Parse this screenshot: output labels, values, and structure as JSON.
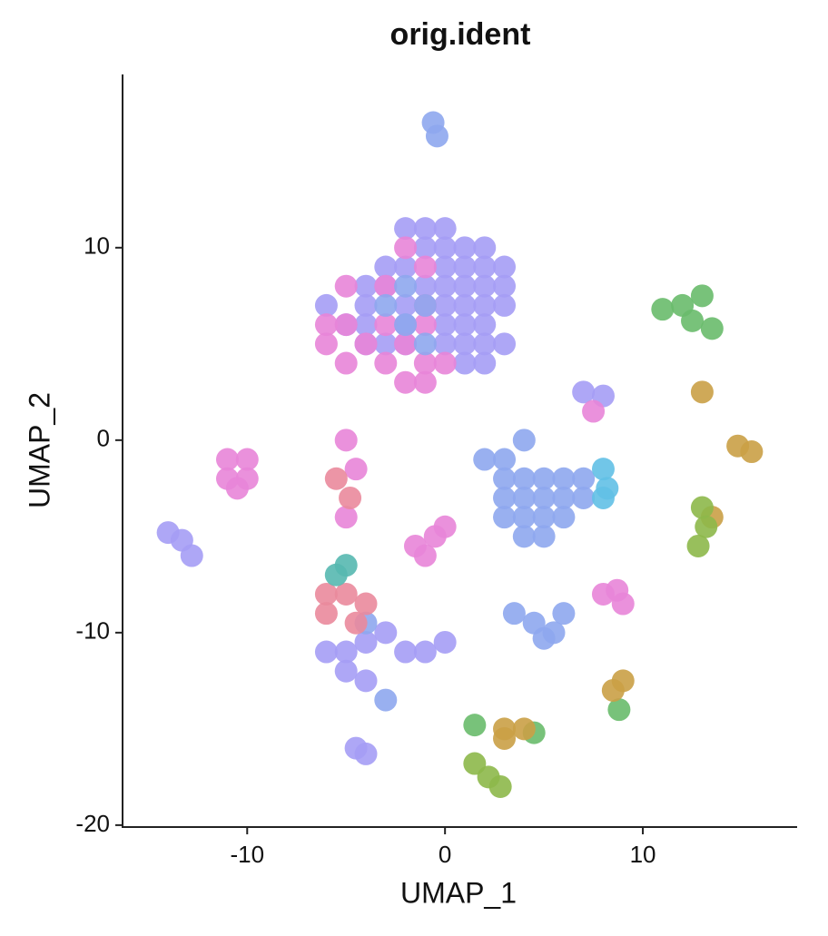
{
  "chart_data": {
    "type": "scatter",
    "title": "orig.ident",
    "x_label": "UMAP_1",
    "y_label": "UMAP_2",
    "xlim": [
      -16.3,
      17.8
    ],
    "ylim": [
      -20.1,
      19
    ],
    "xticks": [
      -10,
      0,
      10
    ],
    "yticks": [
      -20,
      -10,
      0,
      10
    ],
    "grid": false,
    "series": [
      {
        "color": "#a59df5",
        "x": [
          -2,
          -1,
          0,
          -1,
          0,
          1,
          2,
          -3,
          -2,
          0,
          1,
          2,
          3,
          -4,
          -3,
          -1,
          0,
          1,
          2,
          3,
          -6,
          -4,
          -2,
          0,
          1,
          2,
          3,
          -5,
          -4,
          -2,
          0,
          1,
          2,
          -4,
          -3,
          -2,
          0,
          1,
          2,
          3,
          1,
          2,
          -14,
          -13.3,
          -12.8,
          -6,
          -5,
          -4,
          -3,
          -2,
          -1,
          0,
          -5,
          -4,
          -4.5,
          -4,
          7,
          8
        ],
        "values": [
          11,
          11,
          11,
          10,
          10,
          10,
          10,
          9,
          9,
          9,
          9,
          9,
          9,
          8,
          8,
          8,
          8,
          8,
          8,
          8,
          7,
          7,
          7,
          7,
          7,
          7,
          7,
          6,
          6,
          6,
          6,
          6,
          6,
          5,
          5,
          5,
          5,
          5,
          5,
          5,
          4,
          4,
          -4.8,
          -5.2,
          -6,
          -11,
          -11,
          -10.5,
          -10,
          -11,
          -11,
          -10.5,
          -12,
          -12.5,
          -16,
          -16.3,
          2.5,
          2.3
        ]
      },
      {
        "color": "#e885d8",
        "x": [
          -2,
          -1,
          -5,
          -3,
          -1,
          -6,
          -5,
          -3,
          -1,
          -6,
          -4,
          -2,
          -5,
          -3,
          -1,
          0,
          -2,
          -1,
          -11,
          -10,
          -11,
          -10,
          -10.5,
          -5,
          -4.5,
          -5,
          -1.5,
          -0.5,
          0,
          -1,
          7.5,
          8,
          9,
          8.7
        ],
        "values": [
          10,
          9,
          8,
          8,
          7,
          6,
          6,
          6,
          6,
          5,
          5,
          5,
          4,
          4,
          4,
          4,
          3,
          3,
          -1,
          -1,
          -2,
          -2,
          -2.5,
          0,
          -1.5,
          -4,
          -5.5,
          -5,
          -4.5,
          -6,
          1.5,
          -8,
          -8.5,
          -7.8
        ]
      },
      {
        "color": "#8ea7ee",
        "x": [
          -0.6,
          -0.4,
          -2,
          -1,
          -3,
          -2,
          -1,
          2,
          3,
          4,
          3,
          4,
          5,
          6,
          7,
          3,
          4,
          5,
          6,
          7,
          3,
          4,
          5,
          6,
          4,
          5,
          3.5,
          4.5,
          5.5,
          5,
          6,
          -3,
          -4
        ],
        "values": [
          16.5,
          15.8,
          8,
          7,
          7,
          6,
          5,
          -1,
          -1,
          0,
          -2,
          -2,
          -2,
          -2,
          -2,
          -3,
          -3,
          -3,
          -3,
          -3,
          -4,
          -4,
          -4,
          -4,
          -5,
          -5,
          -9,
          -9.5,
          -10,
          -10.3,
          -9,
          -13.5,
          -9.5
        ]
      },
      {
        "color": "#62c0e6",
        "x": [
          8,
          8,
          8.2
        ],
        "values": [
          -3,
          -1.5,
          -2.5
        ]
      },
      {
        "color": "#ea8a9c",
        "x": [
          -5.5,
          -4.8,
          -6,
          -5,
          -4,
          -6,
          -4.5
        ],
        "values": [
          -2,
          -3,
          -8,
          -8,
          -8.5,
          -9,
          -9.5
        ]
      },
      {
        "color": "#56b8b0",
        "x": [
          -5.5,
          -5
        ],
        "values": [
          -7,
          -6.5
        ]
      },
      {
        "color": "#69bb6b",
        "x": [
          11,
          12,
          13,
          12.5,
          13.5,
          8.8,
          4.5,
          1.5
        ],
        "values": [
          6.8,
          7,
          7.5,
          6.2,
          5.8,
          -14,
          -15.2,
          -14.8
        ]
      },
      {
        "color": "#caa046",
        "x": [
          13,
          14.8,
          15.5,
          13.5,
          8.5,
          9,
          3,
          4,
          3
        ],
        "values": [
          2.5,
          -0.3,
          -0.6,
          -4,
          -13,
          -12.5,
          -15.5,
          -15,
          -15
        ]
      },
      {
        "color": "#8db84a",
        "x": [
          13,
          13.2,
          12.8,
          1.5,
          2.2,
          2.8
        ],
        "values": [
          -3.5,
          -4.5,
          -5.5,
          -16.8,
          -17.5,
          -18
        ]
      }
    ]
  }
}
